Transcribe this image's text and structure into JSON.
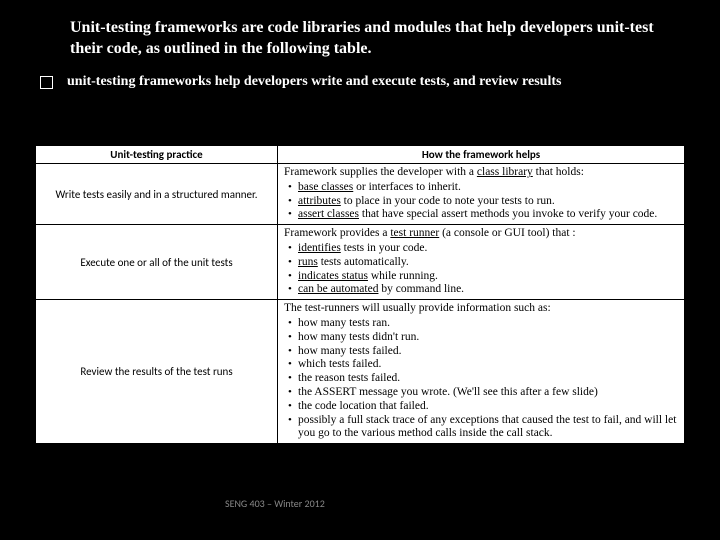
{
  "title": "Unit-testing frameworks are code libraries and modules that help developers unit-test their code, as outlined in the following table.",
  "subtitle": "unit-testing frameworks help developers write and execute tests, and review results",
  "headers": {
    "left": "Unit-testing practice",
    "right": "How the framework helps"
  },
  "rows": [
    {
      "practice": "Write tests easily and in a structured manner.",
      "intro_pre": "Framework supplies the developer with a ",
      "intro_u": "class library",
      "intro_post": " that holds:",
      "items": [
        {
          "u": "base classes",
          "rest": " or interfaces to inherit."
        },
        {
          "u": "attributes",
          "rest": " to place in your code to note your tests to run."
        },
        {
          "u": "assert classes",
          "rest": " that have special assert methods you invoke to verify your code."
        }
      ]
    },
    {
      "practice": "Execute one or all of the unit tests",
      "intro_pre": "Framework provides a ",
      "intro_u": "test runner",
      "intro_post": " (a console or GUI tool) that :",
      "items": [
        {
          "u": "identifies",
          "rest": " tests in your code."
        },
        {
          "u": "runs",
          "rest": " tests automatically."
        },
        {
          "u": "indicates status",
          "rest": " while running."
        },
        {
          "u": "can be automated",
          "rest": " by command line."
        }
      ]
    },
    {
      "practice": "Review the results of the test runs",
      "intro_pre": "The test-runners will usually provide information such as:",
      "intro_u": "",
      "intro_post": "",
      "items": [
        {
          "u": "",
          "rest": "how many tests ran."
        },
        {
          "u": "",
          "rest": "how many tests didn't run."
        },
        {
          "u": "",
          "rest": "how many tests failed."
        },
        {
          "u": "",
          "rest": "which tests failed."
        },
        {
          "u": "",
          "rest": "the reason tests failed."
        },
        {
          "u": "",
          "rest": "the ASSERT message you wrote. (We'll see this after a few slide)"
        },
        {
          "u": "",
          "rest": "the code location that failed."
        },
        {
          "u": "",
          "rest": "possibly a full stack trace of any exceptions that caused the test to fail, and will let you go to the various method calls inside the call stack."
        }
      ]
    }
  ],
  "footer": "SENG 403 – Winter 2012"
}
